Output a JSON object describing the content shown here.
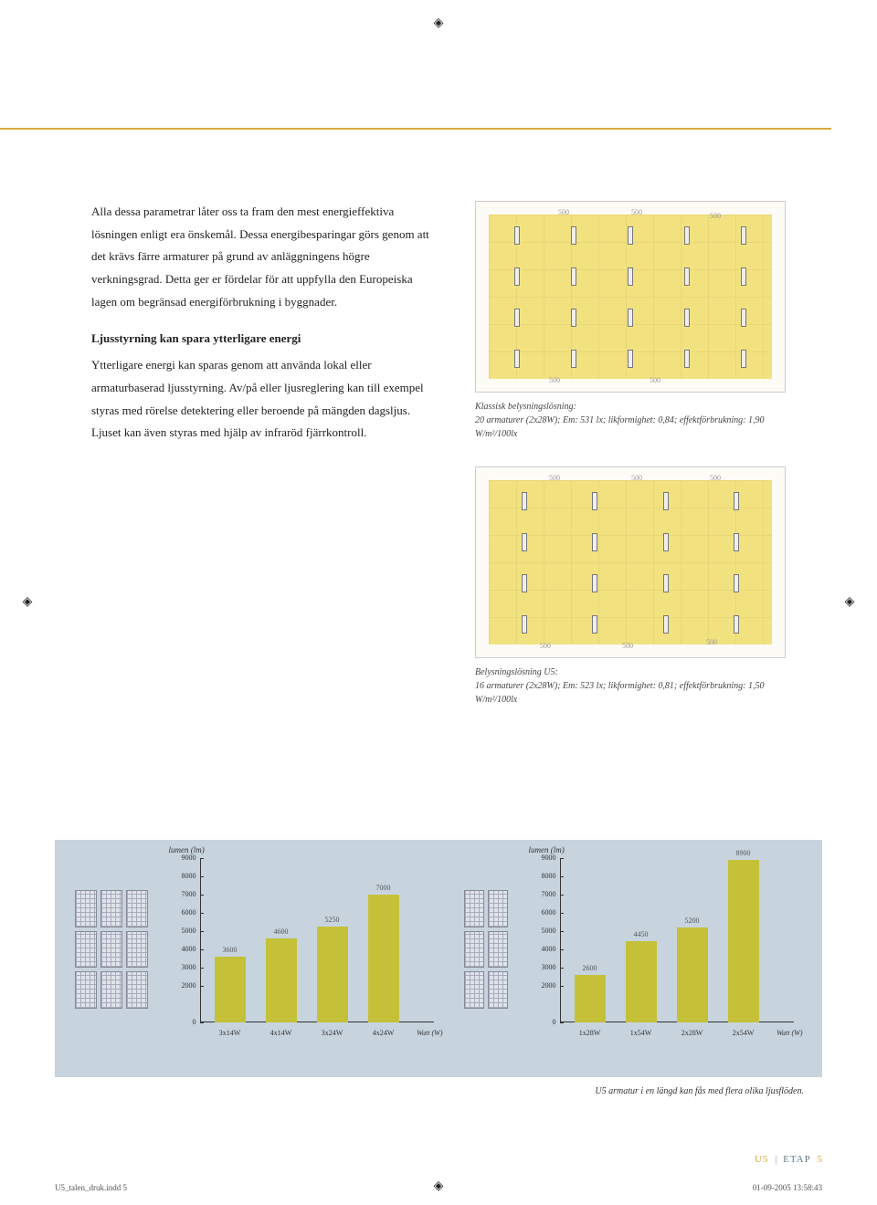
{
  "colors": {
    "accent": "#d8a940",
    "bar": "#c4c139",
    "panel_bg": "#c7d4de",
    "layout_bg": "#f2e27f"
  },
  "text": {
    "para1": "Alla dessa parametrar låter oss ta fram den mest energieffektiva lösningen enligt era önskemål. Dessa energibesparingar görs genom att det krävs färre armaturer på grund av anläggningens högre verkningsgrad. Detta ger er fördelar för att uppfylla den Europeiska lagen om begränsad energiförbrukning i byggnader.",
    "subhead": "Ljusstyrning kan spara ytterligare energi",
    "para2": "Ytterligare energi kan sparas genom att använda lokal eller armaturbaserad ljusstyrning. Av/på eller ljusreglering kan till exempel styras med rörelse detektering eller beroende på mängden dagsljus. Ljuset kan även styras med hjälp av infraröd fjärrkontroll."
  },
  "diagrams": {
    "val": "500",
    "caption1": "Klassisk belysningslösning:\n20 armaturer (2x28W); Em: 531 lx; likformighet: 0,84; effektförbrukning: 1,90 W/m²/100lx",
    "caption2": "Belysningslösning U5:\n16 armaturer (2x28W); Em: 523 lx; likformighet: 0,81; effektförbrukning: 1,50 W/m²/100lx"
  },
  "chart": {
    "ylabel": "lumen (lm)",
    "xunit": "Watt (W)",
    "ymax": 9000,
    "ticks": [
      9000,
      8000,
      7000,
      6000,
      5000,
      4000,
      3000,
      2000,
      0
    ],
    "left": {
      "categories": [
        "3x14W",
        "4x14W",
        "3x24W",
        "4x24W"
      ],
      "values": [
        3600,
        4600,
        5250,
        7000
      ]
    },
    "right": {
      "categories": [
        "1x28W",
        "1x54W",
        "2x28W",
        "2x54W"
      ],
      "values": [
        2600,
        4450,
        5200,
        8900
      ]
    },
    "caption": "U5 armatur i en längd kan fås med flera olika ljusflöden."
  },
  "footer": {
    "u5": "U5",
    "etap": "ETAP",
    "page": "5",
    "slug_file": "U5_talen_druk.indd   5",
    "slug_time": "01-09-2005   13:58:43"
  }
}
